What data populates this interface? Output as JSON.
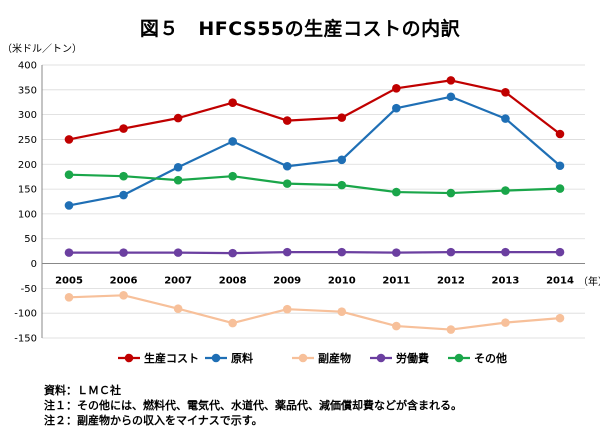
{
  "title": "図５　HFCS55の生産コストの内訳",
  "chart_data": {
    "type": "line",
    "ylabel": "（米ドル／トン）",
    "xlabel": "（年）",
    "ylim": [
      -150,
      400
    ],
    "ytick_step": 50,
    "grid": true,
    "legend_position": "bottom",
    "x": [
      "2005",
      "2006",
      "2007",
      "2008",
      "2009",
      "2010",
      "2011",
      "2012",
      "2013",
      "2014"
    ],
    "series": [
      {
        "name": "生産コスト",
        "color": "#c00000",
        "values": [
          250,
          272,
          293,
          324,
          288,
          294,
          353,
          369,
          345,
          261
        ]
      },
      {
        "name": "原料",
        "color": "#1f6fb5",
        "values": [
          117,
          138,
          194,
          246,
          196,
          209,
          313,
          336,
          292,
          197
        ]
      },
      {
        "name": "副産物",
        "color": "#f7c09a",
        "values": [
          -68,
          -64,
          -91,
          -120,
          -92,
          -97,
          -126,
          -133,
          -119,
          -110
        ]
      },
      {
        "name": "労働費",
        "color": "#6b3fa0",
        "values": [
          22,
          22,
          22,
          21,
          23,
          23,
          22,
          23,
          23,
          23
        ]
      },
      {
        "name": "その他",
        "color": "#1aa64a",
        "values": [
          179,
          176,
          168,
          176,
          161,
          158,
          144,
          142,
          147,
          151
        ]
      }
    ]
  },
  "notes": [
    "資料：ＬＭＣ社",
    "注１：その他には、燃料代、電気代、水道代、薬品代、減価償却費などが含まれる。",
    "注２：副産物からの収入をマイナスで示す。"
  ]
}
